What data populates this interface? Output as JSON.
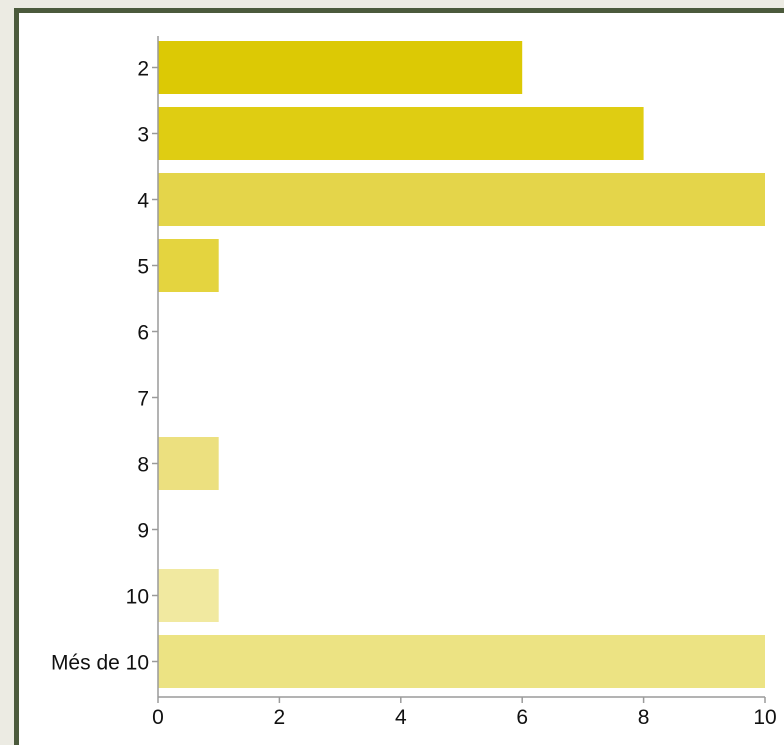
{
  "chart_data": {
    "type": "bar",
    "orientation": "horizontal",
    "categories": [
      "2",
      "3",
      "4",
      "5",
      "6",
      "7",
      "8",
      "9",
      "10",
      "Més de 10"
    ],
    "values": [
      6,
      8,
      10,
      1,
      0,
      0,
      1,
      0,
      1,
      10
    ],
    "bar_colors": [
      "#dcc905",
      "#dfcd12",
      "#e4d54a",
      "#e4d43f",
      "#ffffff",
      "#ffffff",
      "#ece07f",
      "#ffffff",
      "#f1e9a0",
      "#ece383"
    ],
    "xticks": [
      "0",
      "2",
      "4",
      "6",
      "8",
      "10"
    ],
    "xlim": [
      0,
      10
    ],
    "grid": false
  }
}
